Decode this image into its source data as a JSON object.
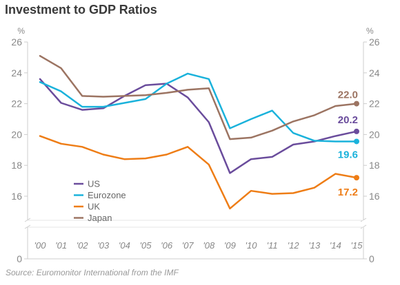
{
  "title": "Investment to GDP Ratios",
  "source": "Source: Euromonitor International from the IMF",
  "unit_label": "%",
  "colors": {
    "US": "#6a4c9c",
    "Eurozone": "#1ab2db",
    "UK": "#ee7d16",
    "Japan": "#9c7462",
    "grid": "#cccccc",
    "text": "#888888"
  },
  "chart_data": {
    "type": "line",
    "title": "Investment to GDP Ratios",
    "ylabel": "%",
    "xlabel": "",
    "categories": [
      "'00",
      "'01",
      "'02",
      "'03",
      "'04",
      "'05",
      "'06",
      "'07",
      "'08",
      "'09",
      "'10",
      "'11",
      "'12",
      "'13",
      "'14",
      "'15"
    ],
    "y_ticks": [
      26,
      24,
      22,
      20,
      18,
      16,
      0
    ],
    "ylim": [
      0,
      26
    ],
    "axis_break": true,
    "grid": false,
    "legend_position": "lower-left",
    "series": [
      {
        "name": "US",
        "color": "#6a4c9c",
        "values": [
          23.6,
          22.05,
          21.6,
          21.7,
          22.5,
          23.2,
          23.3,
          22.4,
          20.8,
          17.5,
          18.4,
          18.55,
          19.35,
          19.55,
          19.9,
          20.2
        ],
        "end_label": "20.2"
      },
      {
        "name": "Eurozone",
        "color": "#1ab2db",
        "values": [
          23.4,
          22.8,
          21.8,
          21.8,
          22.05,
          22.3,
          23.3,
          23.95,
          23.6,
          20.4,
          21.0,
          21.55,
          20.1,
          19.6,
          19.55,
          19.55
        ],
        "end_label": "19.6"
      },
      {
        "name": "UK",
        "color": "#ee7d16",
        "values": [
          19.9,
          19.4,
          19.2,
          18.7,
          18.4,
          18.45,
          18.7,
          19.2,
          18.05,
          15.2,
          16.35,
          16.15,
          16.2,
          16.55,
          17.45,
          17.2
        ],
        "end_label": "17.2"
      },
      {
        "name": "Japan",
        "color": "#9c7462",
        "values": [
          25.1,
          24.3,
          22.5,
          22.45,
          22.5,
          22.55,
          22.7,
          22.9,
          23.0,
          19.7,
          19.8,
          20.25,
          20.85,
          21.25,
          21.85,
          22.0
        ],
        "end_label": "22.0"
      }
    ]
  }
}
